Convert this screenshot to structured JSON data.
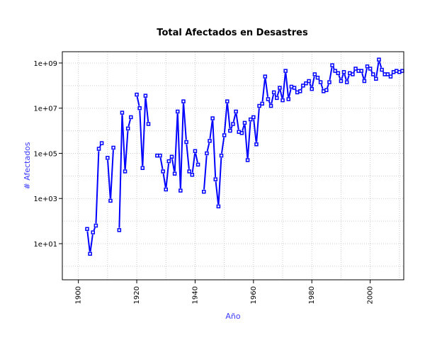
{
  "chart_data": {
    "type": "line",
    "title": "Total Afectados en Desastres",
    "xlabel": "Año",
    "ylabel": "# Afectados",
    "xlim": [
      1894.5,
      2011.5
    ],
    "ylim_log10": [
      -0.6,
      9.5
    ],
    "y_scale": "log",
    "x_ticks": [
      1900,
      1920,
      1940,
      1960,
      1980,
      2000
    ],
    "x_tick_labels": [
      "1900",
      "1920",
      "1940",
      "1960",
      "1980",
      "2000"
    ],
    "y_ticks_log10": [
      1,
      3,
      5,
      7,
      9
    ],
    "y_tick_labels": [
      "1e+01",
      "1e+03",
      "1e+05",
      "1e+07",
      "1e+09"
    ],
    "grid": true,
    "line_type": "b",
    "colors": {
      "series": "#0000ff",
      "axis_title": "#3a3aff",
      "grid": "#cccccc"
    },
    "series": [
      {
        "values_log10": [
          [
            1903,
            1.65
          ],
          [
            1904,
            0.55
          ],
          [
            1905,
            1.5
          ],
          [
            1906,
            1.8
          ],
          [
            1907,
            5.2
          ],
          [
            1908,
            5.45
          ],
          [
            1910,
            4.8
          ],
          [
            1911,
            2.9
          ],
          [
            1912,
            5.25
          ],
          [
            1914,
            1.6
          ],
          [
            1915,
            6.8
          ],
          [
            1916,
            4.2
          ],
          [
            1917,
            6.1
          ],
          [
            1918,
            6.6
          ],
          [
            1920,
            7.6
          ],
          [
            1921,
            7.0
          ],
          [
            1922,
            4.35
          ],
          [
            1923,
            7.55
          ],
          [
            1924,
            6.3
          ],
          [
            1927,
            4.9
          ],
          [
            1928,
            4.9
          ],
          [
            1929,
            4.2
          ],
          [
            1930,
            3.4
          ],
          [
            1931,
            4.65
          ],
          [
            1932,
            4.85
          ],
          [
            1933,
            4.1
          ],
          [
            1934,
            6.85
          ],
          [
            1935,
            3.35
          ],
          [
            1936,
            7.3
          ],
          [
            1937,
            5.5
          ],
          [
            1938,
            4.2
          ],
          [
            1939,
            4.05
          ],
          [
            1940,
            5.1
          ],
          [
            1941,
            4.5
          ],
          [
            1943,
            3.3
          ],
          [
            1944,
            5.0
          ],
          [
            1945,
            5.55
          ],
          [
            1946,
            6.55
          ],
          [
            1947,
            3.85
          ],
          [
            1948,
            2.65
          ],
          [
            1949,
            4.9
          ],
          [
            1950,
            5.8
          ],
          [
            1951,
            7.3
          ],
          [
            1952,
            6.0
          ],
          [
            1953,
            6.3
          ],
          [
            1954,
            6.85
          ],
          [
            1955,
            5.95
          ],
          [
            1956,
            5.9
          ],
          [
            1957,
            6.35
          ],
          [
            1958,
            4.7
          ],
          [
            1959,
            6.5
          ],
          [
            1960,
            6.6
          ],
          [
            1961,
            5.4
          ],
          [
            1962,
            7.1
          ],
          [
            1963,
            7.2
          ],
          [
            1964,
            8.4
          ],
          [
            1965,
            7.4
          ],
          [
            1966,
            7.1
          ],
          [
            1967,
            7.7
          ],
          [
            1968,
            7.45
          ],
          [
            1969,
            7.9
          ],
          [
            1970,
            7.35
          ],
          [
            1971,
            8.65
          ],
          [
            1972,
            7.4
          ],
          [
            1973,
            7.95
          ],
          [
            1974,
            7.9
          ],
          [
            1975,
            7.7
          ],
          [
            1976,
            7.75
          ],
          [
            1977,
            8.0
          ],
          [
            1978,
            8.1
          ],
          [
            1979,
            8.2
          ],
          [
            1980,
            7.85
          ],
          [
            1981,
            8.5
          ],
          [
            1982,
            8.35
          ],
          [
            1983,
            8.15
          ],
          [
            1984,
            7.75
          ],
          [
            1985,
            7.8
          ],
          [
            1986,
            8.15
          ],
          [
            1987,
            8.9
          ],
          [
            1988,
            8.65
          ],
          [
            1989,
            8.55
          ],
          [
            1990,
            8.2
          ],
          [
            1991,
            8.6
          ],
          [
            1992,
            8.15
          ],
          [
            1993,
            8.55
          ],
          [
            1994,
            8.5
          ],
          [
            1995,
            8.75
          ],
          [
            1996,
            8.65
          ],
          [
            1997,
            8.65
          ],
          [
            1998,
            8.2
          ],
          [
            1999,
            8.85
          ],
          [
            2000,
            8.75
          ],
          [
            2001,
            8.5
          ],
          [
            2002,
            8.3
          ],
          [
            2003,
            9.15
          ],
          [
            2004,
            8.7
          ],
          [
            2005,
            8.5
          ],
          [
            2006,
            8.5
          ],
          [
            2007,
            8.4
          ],
          [
            2008,
            8.6
          ],
          [
            2009,
            8.65
          ],
          [
            2010,
            8.6
          ],
          [
            2011,
            8.65
          ]
        ]
      }
    ]
  }
}
